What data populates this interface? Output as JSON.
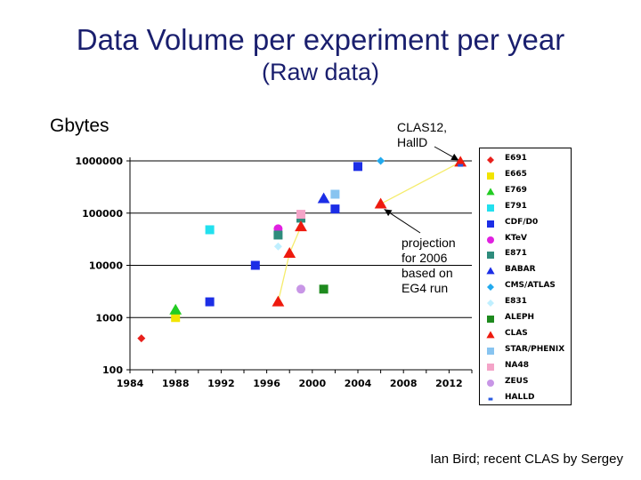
{
  "title": "Data Volume per experiment per year",
  "subtitle": "(Raw data)",
  "credit": "Ian Bird; recent CLAS by Sergey",
  "chart_data": {
    "type": "scatter",
    "ylabel": "Gbytes",
    "xlim": [
      1984,
      2014
    ],
    "ylim": [
      100,
      1000000
    ],
    "y_scale": "log",
    "x_ticks": [
      "1984",
      "1988",
      "1992",
      "1996",
      "2000",
      "2004",
      "2008",
      "2012"
    ],
    "y_ticks": [
      "100",
      "1000",
      "10000",
      "100000",
      "1000000"
    ],
    "grid": "horizontal",
    "legend_position": "right",
    "series": [
      {
        "name": "E691",
        "marker": "diamond",
        "color": "#e8201c",
        "points": [
          [
            1985,
            400
          ]
        ]
      },
      {
        "name": "E665",
        "marker": "square",
        "color": "#f2e400",
        "points": [
          [
            1988,
            1000
          ]
        ]
      },
      {
        "name": "E769",
        "marker": "triangle",
        "color": "#22cc22",
        "points": [
          [
            1988,
            1400
          ]
        ]
      },
      {
        "name": "E791",
        "marker": "square",
        "color": "#22e0ee",
        "points": [
          [
            1991,
            48000
          ]
        ]
      },
      {
        "name": "CDF/D0",
        "marker": "square",
        "color": "#1c2ee6",
        "points": [
          [
            1991,
            2000
          ],
          [
            1995,
            10000
          ],
          [
            2002,
            120000
          ],
          [
            2004,
            780000
          ]
        ]
      },
      {
        "name": "KTeV",
        "marker": "circle",
        "color": "#e020e0",
        "points": [
          [
            1997,
            50000
          ]
        ]
      },
      {
        "name": "E871",
        "marker": "square",
        "color": "#2e8c7c",
        "points": [
          [
            1997,
            38000
          ],
          [
            1999,
            80000
          ]
        ]
      },
      {
        "name": "BABAR",
        "marker": "triangle",
        "color": "#1c2ee6",
        "points": [
          [
            2001,
            190000
          ]
        ]
      },
      {
        "name": "CMS/ATLAS",
        "marker": "diamond",
        "color": "#22aaee",
        "points": [
          [
            2006,
            1000000
          ]
        ]
      },
      {
        "name": "E831",
        "marker": "diamond",
        "color": "#bfefff",
        "points": [
          [
            1997,
            23000
          ]
        ]
      },
      {
        "name": "ALEPH",
        "marker": "square",
        "color": "#1e8a1e",
        "points": [
          [
            2001,
            3500
          ]
        ]
      },
      {
        "name": "CLAS",
        "marker": "triangle",
        "color": "#ee1a0e",
        "points": [
          [
            1997,
            2000
          ],
          [
            1998,
            17000
          ],
          [
            1999,
            55000
          ],
          [
            2006,
            150000
          ],
          [
            2013,
            950000
          ]
        ]
      },
      {
        "name": "STAR/PHENIX",
        "marker": "square",
        "color": "#88c4f0",
        "points": [
          [
            2002,
            230000
          ]
        ]
      },
      {
        "name": "NA48",
        "marker": "square",
        "color": "#f4a4c8",
        "points": [
          [
            1999,
            95000
          ]
        ]
      },
      {
        "name": "ZEUS",
        "marker": "circle",
        "color": "#c896e6",
        "points": [
          [
            1999,
            3500
          ]
        ]
      },
      {
        "name": "HALLD",
        "marker": "dash",
        "color": "#2a5ae0",
        "points": [
          [
            2013,
            820000
          ]
        ]
      }
    ],
    "annotations": [
      {
        "text": "CLAS12,\nHallD"
      },
      {
        "text": "projection\nfor 2006\nbased on\nEG4 run"
      }
    ]
  }
}
